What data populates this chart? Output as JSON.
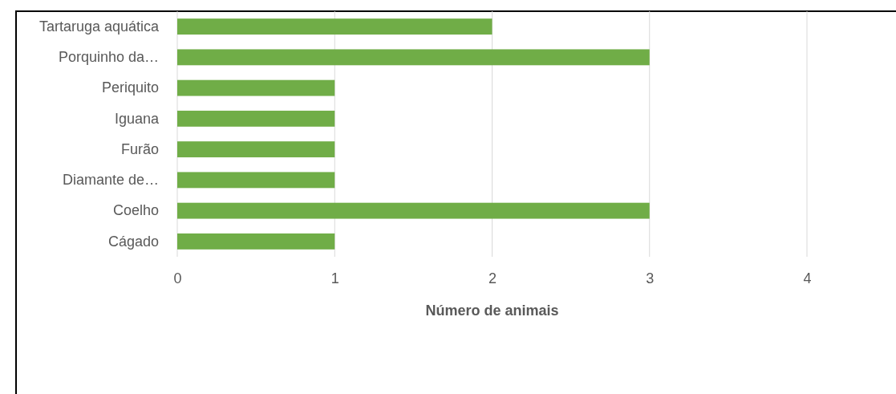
{
  "chart_data": {
    "type": "bar",
    "orientation": "horizontal",
    "xlabel": "Número de animais",
    "categories": [
      "Tartaruga aquática",
      "Porquinho da…",
      "Periquito",
      "Iguana",
      "Furão",
      "Diamante de…",
      "Coelho",
      "Cágado"
    ],
    "values": [
      2,
      3,
      1,
      1,
      1,
      1,
      3,
      1
    ],
    "color": "#70ad47",
    "xlim": [
      0,
      4
    ],
    "xticks": [
      0,
      1,
      2,
      3,
      4
    ],
    "grid": "x"
  }
}
